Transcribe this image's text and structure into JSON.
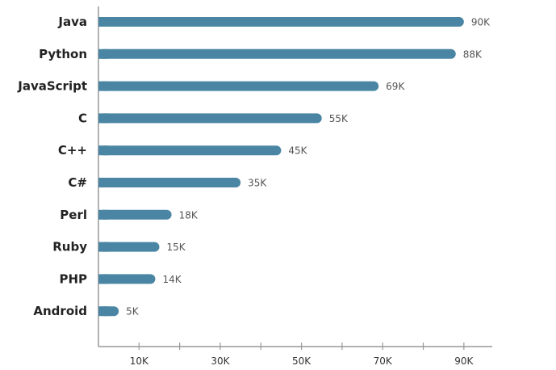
{
  "chart_data": {
    "type": "bar",
    "orientation": "horizontal",
    "categories": [
      "Java",
      "Python",
      "JavaScript",
      "C",
      "C++",
      "C#",
      "Perl",
      "Ruby",
      "PHP",
      "Android"
    ],
    "values": [
      90000,
      88000,
      69000,
      55000,
      45000,
      35000,
      18000,
      15000,
      14000,
      5000
    ],
    "value_labels": [
      "90K",
      "88K",
      "69K",
      "55K",
      "45K",
      "35K",
      "18K",
      "15K",
      "14K",
      "5K"
    ],
    "x_ticks": [
      10000,
      30000,
      50000,
      70000,
      90000
    ],
    "x_tick_labels": [
      "10K",
      "30K",
      "50K",
      "70K",
      "90K"
    ],
    "xlim": [
      0,
      95000
    ],
    "title": "",
    "xlabel": "",
    "ylabel": "",
    "grid": false,
    "bar_color": "#4a86a3",
    "axis_color": "#999999"
  }
}
